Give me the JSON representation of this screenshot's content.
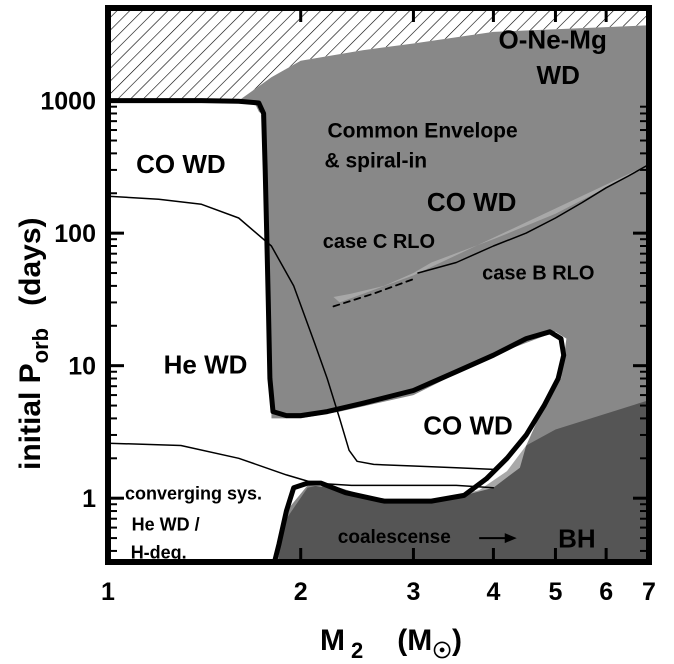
{
  "chart_data": {
    "type": "area",
    "title": "",
    "xlabel": {
      "main": "M",
      "sub": "2",
      "unit_open": "(M",
      "unit_close": ")"
    },
    "ylabel": {
      "main": "initial  P",
      "sub": "orb",
      "unit": "(days)"
    },
    "xscale": "log",
    "yscale": "log",
    "xlim": [
      1,
      7
    ],
    "ylim": [
      0.33,
      5000
    ],
    "grid": false,
    "x_ticks": [
      {
        "value": 1,
        "label": "1"
      },
      {
        "value": 2,
        "label": "2"
      },
      {
        "value": 3,
        "label": "3"
      },
      {
        "value": 4,
        "label": "4"
      },
      {
        "value": 5,
        "label": "5"
      },
      {
        "value": 6,
        "label": "6"
      },
      {
        "value": 7,
        "label": "7"
      }
    ],
    "y_ticks": [
      {
        "value": 1,
        "label": "1"
      },
      {
        "value": 10,
        "label": "10"
      },
      {
        "value": 100,
        "label": "100"
      },
      {
        "value": 1000,
        "label": "1000"
      }
    ],
    "colors": {
      "common_envelope": "#888888",
      "case_b_region": "#a8a8a8",
      "coalescence": "#555555",
      "boundary": "#000000"
    },
    "regions": [
      {
        "name": "hatched-region",
        "fill": "hatch",
        "points": [
          [
            1,
            5000
          ],
          [
            7,
            5000
          ],
          [
            7,
            3700
          ],
          [
            4,
            3300
          ],
          [
            3,
            2700
          ],
          [
            2.5,
            2400
          ],
          [
            2,
            2000
          ],
          [
            1.8,
            1500
          ],
          [
            1.6,
            1000
          ],
          [
            1,
            1000
          ]
        ]
      },
      {
        "name": "common-envelope-region",
        "fill": "common_envelope",
        "points": [
          [
            1.6,
            1000
          ],
          [
            1.8,
            1500
          ],
          [
            2,
            2000
          ],
          [
            2.5,
            2400
          ],
          [
            3,
            2700
          ],
          [
            4,
            3300
          ],
          [
            7,
            3700
          ],
          [
            7,
            0.33
          ],
          [
            1.84,
            0.33
          ],
          [
            1.82,
            0.8
          ],
          [
            1.8,
            4
          ],
          [
            1.78,
            100
          ],
          [
            1.75,
            700
          ],
          [
            1.7,
            930
          ],
          [
            1.6,
            1000
          ]
        ]
      },
      {
        "name": "case-b-region",
        "fill": "case_b_region",
        "points": [
          [
            7,
            330
          ],
          [
            7,
            0.33
          ],
          [
            1.84,
            0.33
          ],
          [
            2.2,
            0.36
          ],
          [
            4.5,
            2.5
          ],
          [
            7,
            5.5
          ],
          [
            7,
            330
          ],
          [
            6,
            220
          ],
          [
            5,
            140
          ],
          [
            4,
            90
          ],
          [
            3.2,
            60
          ],
          [
            3,
            50
          ],
          [
            2.7,
            40
          ],
          [
            2.4,
            35
          ],
          [
            2.25,
            33
          ],
          [
            2.3,
            30
          ],
          [
            3,
            48
          ]
        ]
      },
      {
        "name": "coalescence-region",
        "fill": "coalescence",
        "points": [
          [
            1.84,
            0.33
          ],
          [
            1.9,
            0.7
          ],
          [
            2.05,
            1.2
          ],
          [
            2.2,
            1.3
          ],
          [
            2.4,
            1.05
          ],
          [
            2.7,
            0.95
          ],
          [
            3.2,
            0.95
          ],
          [
            3.6,
            1.05
          ],
          [
            4,
            1.2
          ],
          [
            4.4,
            1.7
          ],
          [
            4.5,
            2.5
          ],
          [
            5,
            3.3
          ],
          [
            7,
            5.5
          ],
          [
            7,
            0.33
          ]
        ]
      }
    ],
    "white_regions": [
      {
        "name": "low-mass-white-region",
        "points": [
          [
            1,
            1000
          ],
          [
            1.5,
            1000
          ],
          [
            1.75,
            800
          ],
          [
            1.78,
            100
          ],
          [
            1.8,
            4
          ],
          [
            2,
            4
          ],
          [
            2.3,
            4.5
          ],
          [
            3,
            6
          ],
          [
            4,
            12
          ],
          [
            5,
            18
          ],
          [
            5.2,
            16
          ],
          [
            5.1,
            8
          ],
          [
            4.8,
            5
          ],
          [
            4.5,
            2.5
          ],
          [
            4.2,
            1.6
          ],
          [
            3.8,
            1.15
          ],
          [
            3.2,
            0.95
          ],
          [
            2.7,
            0.95
          ],
          [
            2.3,
            1.2
          ],
          [
            2.05,
            1.25
          ],
          [
            1.9,
            0.8
          ],
          [
            1.84,
            0.33
          ],
          [
            1,
            0.33
          ]
        ]
      }
    ],
    "curves": [
      {
        "name": "white-region-boundary",
        "style": "thick",
        "points": [
          [
            1,
            1000
          ],
          [
            1.4,
            1000
          ],
          [
            1.6,
            990
          ],
          [
            1.72,
            960
          ],
          [
            1.75,
            800
          ],
          [
            1.76,
            300
          ],
          [
            1.77,
            100
          ],
          [
            1.78,
            30
          ],
          [
            1.79,
            8
          ],
          [
            1.81,
            4.5
          ],
          [
            1.9,
            4.2
          ],
          [
            2,
            4.2
          ],
          [
            2.2,
            4.5
          ],
          [
            2.5,
            5.2
          ],
          [
            3,
            6.5
          ],
          [
            3.5,
            9
          ],
          [
            4,
            12
          ],
          [
            4.5,
            16
          ],
          [
            4.9,
            18
          ],
          [
            5.1,
            16
          ],
          [
            5.15,
            12
          ],
          [
            5.05,
            8
          ],
          [
            4.8,
            5
          ],
          [
            4.5,
            3
          ],
          [
            4.2,
            2
          ],
          [
            3.9,
            1.4
          ],
          [
            3.6,
            1.05
          ],
          [
            3.2,
            0.95
          ],
          [
            2.7,
            0.95
          ],
          [
            2.35,
            1.1
          ],
          [
            2.15,
            1.3
          ],
          [
            2.05,
            1.3
          ],
          [
            1.95,
            1.2
          ],
          [
            1.9,
            0.8
          ],
          [
            1.85,
            0.45
          ],
          [
            1.82,
            0.33
          ]
        ]
      },
      {
        "name": "thin-boundary-upper",
        "style": "thin",
        "points": [
          [
            1,
            190
          ],
          [
            1.2,
            180
          ],
          [
            1.4,
            165
          ],
          [
            1.6,
            130
          ],
          [
            1.8,
            80
          ],
          [
            1.95,
            40
          ],
          [
            2.1,
            15
          ],
          [
            2.2,
            8
          ],
          [
            2.3,
            4
          ],
          [
            2.38,
            2.3
          ],
          [
            2.45,
            1.9
          ],
          [
            2.6,
            1.8
          ],
          [
            3,
            1.75
          ],
          [
            3.5,
            1.7
          ],
          [
            4,
            1.65
          ]
        ]
      },
      {
        "name": "thin-boundary-lower",
        "style": "thin",
        "points": [
          [
            1,
            2.6
          ],
          [
            1.3,
            2.5
          ],
          [
            1.6,
            2
          ],
          [
            1.9,
            1.5
          ],
          [
            2.1,
            1.3
          ],
          [
            2.4,
            1.25
          ],
          [
            3,
            1.25
          ],
          [
            3.5,
            1.25
          ],
          [
            4,
            1.2
          ]
        ]
      },
      {
        "name": "case-b-boundary",
        "style": "thin",
        "points": [
          [
            3.05,
            50
          ],
          [
            3.5,
            60
          ],
          [
            4,
            80
          ],
          [
            4.5,
            100
          ],
          [
            5,
            130
          ],
          [
            5.5,
            170
          ],
          [
            6,
            220
          ],
          [
            6.5,
            270
          ],
          [
            7,
            330
          ]
        ]
      },
      {
        "name": "case-c-dashed",
        "style": "dashed",
        "points": [
          [
            2.25,
            28
          ],
          [
            2.6,
            35
          ],
          [
            3,
            45
          ]
        ]
      }
    ],
    "annotations": [
      {
        "text": "O-Ne-Mg",
        "x": 4.95,
        "y": 2800,
        "size": 26
      },
      {
        "text": "WD",
        "x": 5.05,
        "y": 1500,
        "size": 26
      },
      {
        "text": "Common Envelope",
        "x": 3.1,
        "y": 580,
        "size": 21
      },
      {
        "text": "& spiral-in",
        "x": 2.62,
        "y": 345,
        "size": 21
      },
      {
        "text": "CO WD",
        "x": 1.3,
        "y": 320,
        "size": 26
      },
      {
        "text": "CO WD",
        "x": 3.7,
        "y": 165,
        "size": 26
      },
      {
        "text": "case C  RLO",
        "x": 2.65,
        "y": 85,
        "size": 20
      },
      {
        "text": "case B  RLO",
        "x": 4.7,
        "y": 49,
        "size": 20
      },
      {
        "text": "He WD",
        "x": 1.42,
        "y": 9.8,
        "size": 26
      },
      {
        "text": "CO WD",
        "x": 3.65,
        "y": 3.4,
        "size": 26
      },
      {
        "text": "converging sys.",
        "x": 1.36,
        "y": 1.06,
        "size": 18
      },
      {
        "text": "He WD /",
        "x": 1.23,
        "y": 0.62,
        "size": 18
      },
      {
        "text": "H-deg.",
        "x": 1.2,
        "y": 0.38,
        "size": 18
      },
      {
        "text": "coalescense",
        "x": 2.8,
        "y": 0.5,
        "size": 19
      },
      {
        "text": "BH",
        "x": 5.4,
        "y": 0.48,
        "size": 26
      }
    ],
    "arrow": {
      "name": "coalescence-arrow",
      "from": [
        3.8,
        0.5
      ],
      "to": [
        4.35,
        0.5
      ]
    }
  }
}
